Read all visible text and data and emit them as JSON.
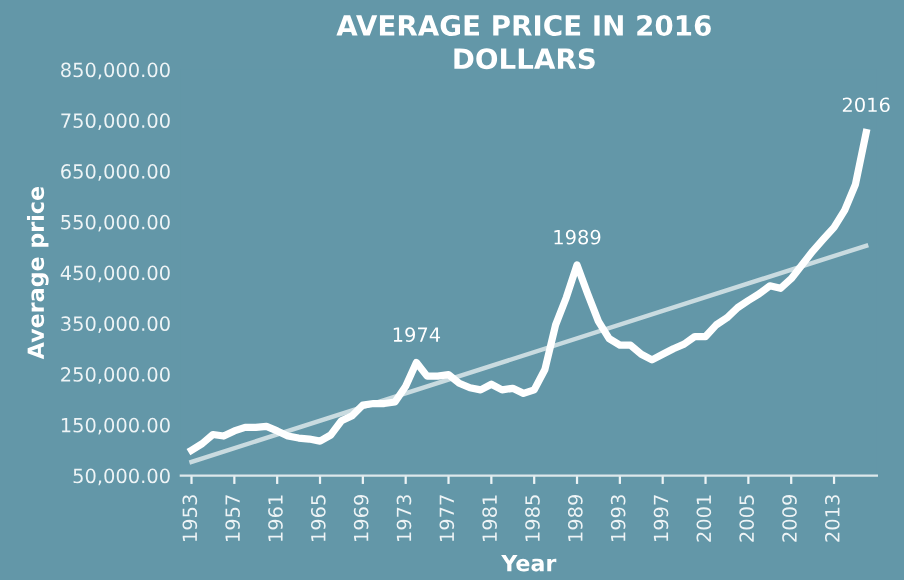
{
  "chart_data": {
    "type": "line",
    "title": "AVERAGE PRICE IN 2016\nDOLLARS",
    "xlabel": "Year",
    "ylabel": "Average price",
    "x": [
      1953,
      1954,
      1955,
      1956,
      1957,
      1958,
      1959,
      1960,
      1961,
      1962,
      1963,
      1964,
      1965,
      1966,
      1967,
      1968,
      1969,
      1970,
      1971,
      1972,
      1973,
      1974,
      1975,
      1976,
      1977,
      1978,
      1979,
      1980,
      1981,
      1982,
      1983,
      1984,
      1985,
      1986,
      1987,
      1988,
      1989,
      1990,
      1991,
      1992,
      1993,
      1994,
      1995,
      1996,
      1997,
      1998,
      1999,
      2000,
      2001,
      2002,
      2003,
      2004,
      2005,
      2006,
      2007,
      2008,
      2009,
      2010,
      2011,
      2012,
      2013,
      2014,
      2015,
      2016
    ],
    "series": [
      {
        "color": "#ffffff",
        "values": [
          100000,
          113000,
          131000,
          128000,
          138000,
          145000,
          145000,
          147000,
          138000,
          128000,
          124000,
          122000,
          118000,
          130000,
          158000,
          168000,
          189000,
          192000,
          192000,
          195000,
          226000,
          273000,
          246000,
          246000,
          249000,
          232000,
          223000,
          219000,
          230000,
          219000,
          222000,
          212000,
          219000,
          259000,
          347000,
          401000,
          465000,
          408000,
          354000,
          320000,
          307000,
          307000,
          289000,
          278000,
          289000,
          300000,
          309000,
          324000,
          324000,
          347000,
          361000,
          381000,
          395000,
          408000,
          424000,
          419000,
          438000,
          465000,
          492000,
          516000,
          539000,
          573000,
          624000,
          726000
        ]
      },
      {
        "type": "line",
        "color": "#c9dbe0",
        "x": [
          1953,
          2016
        ],
        "values": [
          77000,
          503000
        ]
      }
    ],
    "xlim": [
      1952,
      2017
    ],
    "xticks": [
      1953,
      1957,
      1961,
      1965,
      1969,
      1973,
      1977,
      1981,
      1985,
      1989,
      1993,
      1997,
      2001,
      2005,
      2009,
      2013
    ],
    "ylim": [
      50000,
      850000
    ],
    "yticks": [
      {
        "value": 50000,
        "label": "50,000.00"
      },
      {
        "value": 150000,
        "label": "150,000.00"
      },
      {
        "value": 250000,
        "label": "250,000.00"
      },
      {
        "value": 350000,
        "label": "350,000.00"
      },
      {
        "value": 450000,
        "label": "450,000.00"
      },
      {
        "value": 550000,
        "label": "550,000.00"
      },
      {
        "value": 650000,
        "label": "650,000.00"
      },
      {
        "value": 750000,
        "label": "750,000.00"
      },
      {
        "value": 850000,
        "label": "850,000.00"
      }
    ],
    "annotations": [
      {
        "text": "1974",
        "x": 1974,
        "y": 273000
      },
      {
        "text": "1989",
        "x": 1989,
        "y": 465000
      },
      {
        "text": "2016",
        "x": 2016,
        "y": 726000
      }
    ],
    "grid": false,
    "legend": false,
    "marker": "none",
    "line_style": "solid"
  }
}
